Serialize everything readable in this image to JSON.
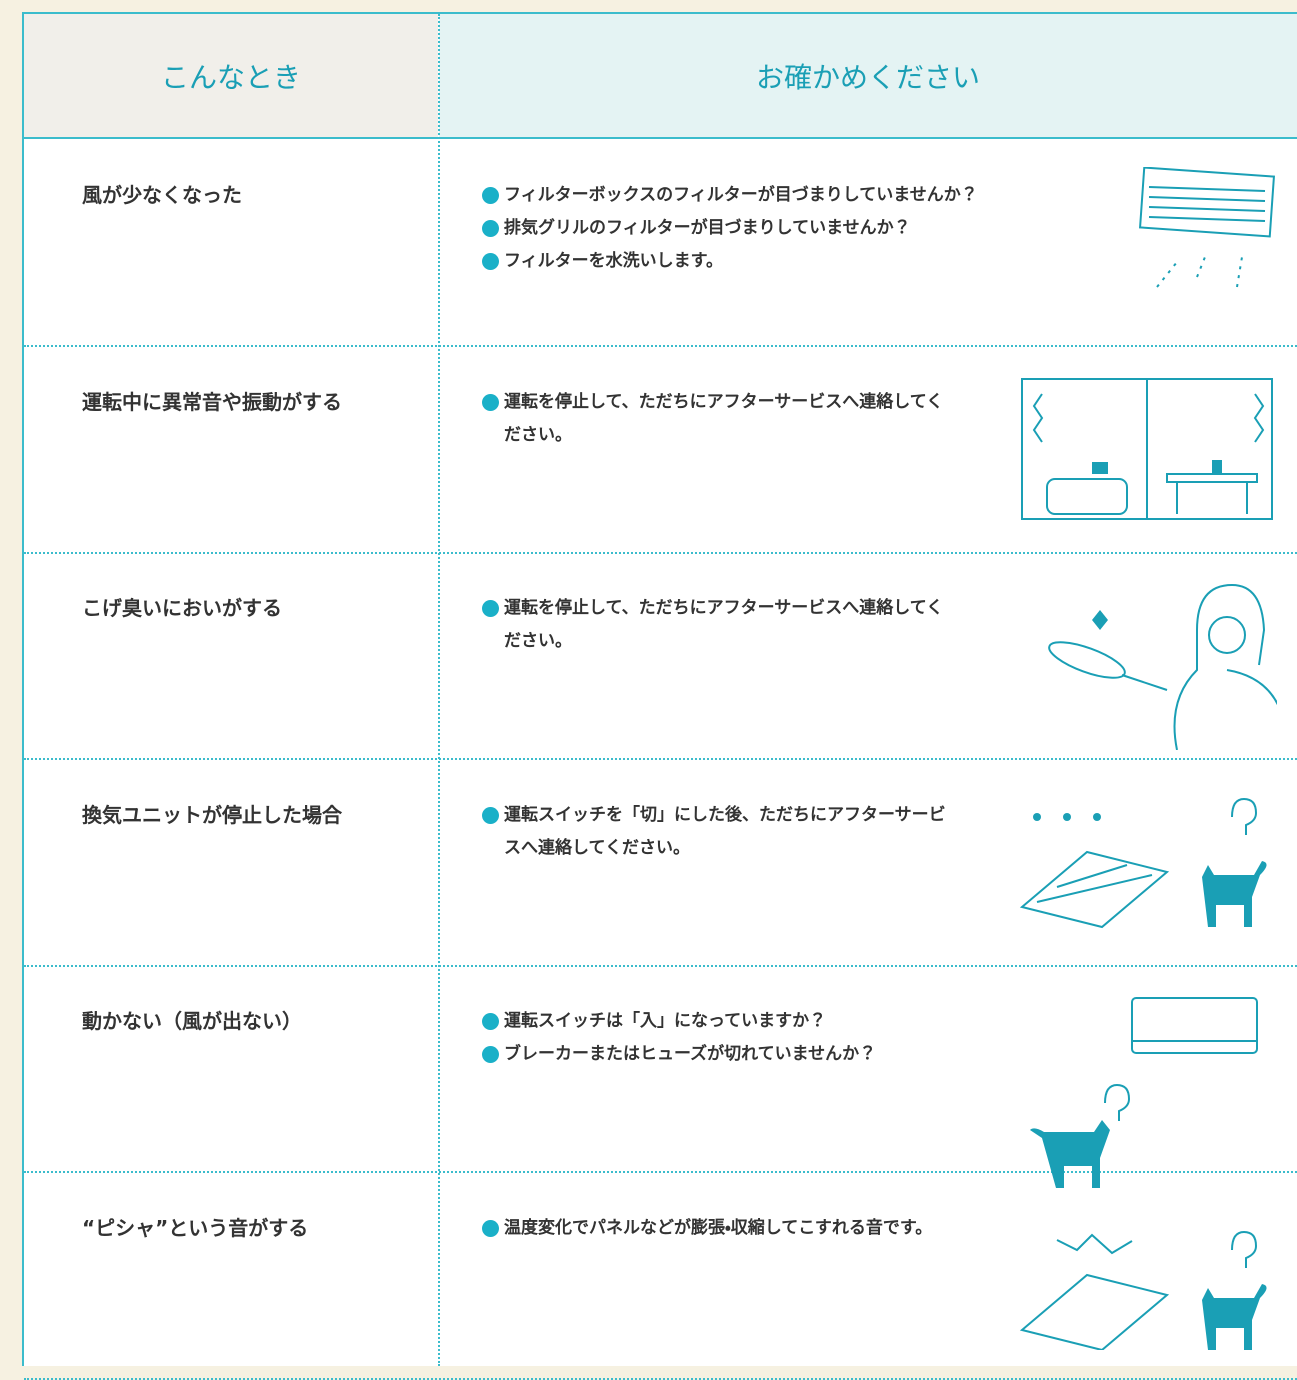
{
  "header": {
    "columns": [
      "こんなとき",
      "お確かめください"
    ]
  },
  "rows": [
    {
      "symptom": "風が少なくなった",
      "checks": [
        "フィルターボックスのフィルターが目づまりしていませんか？",
        "排気グリルのフィルターが目づまりしていませんか？",
        "フィルターを水洗いします。"
      ]
    },
    {
      "symptom": "運転中に異常音や振動がする",
      "checks": [
        "運転を停止して、ただちにアフターサービスへ連絡してください。"
      ]
    },
    {
      "symptom": "こげ臭いにおいがする",
      "checks": [
        "運転を停止して、ただちにアフターサービスへ連絡してください。"
      ]
    },
    {
      "symptom": "換気ユニットが停止した場合",
      "checks": [
        "運転スイッチを「切」にした後、ただちにアフターサービスへ連絡してください。"
      ]
    },
    {
      "symptom": "動かない（風が出ない）",
      "checks": [
        "運転スイッチは「入」になっていますか？",
        "ブレーカーまたはヒューズが切れていませんか？"
      ]
    },
    {
      "symptom": "“ピシャ”という音がする",
      "checks": [
        "温度変化でパネルなどが膨張・収縮してこすれる音です。"
      ]
    }
  ]
}
